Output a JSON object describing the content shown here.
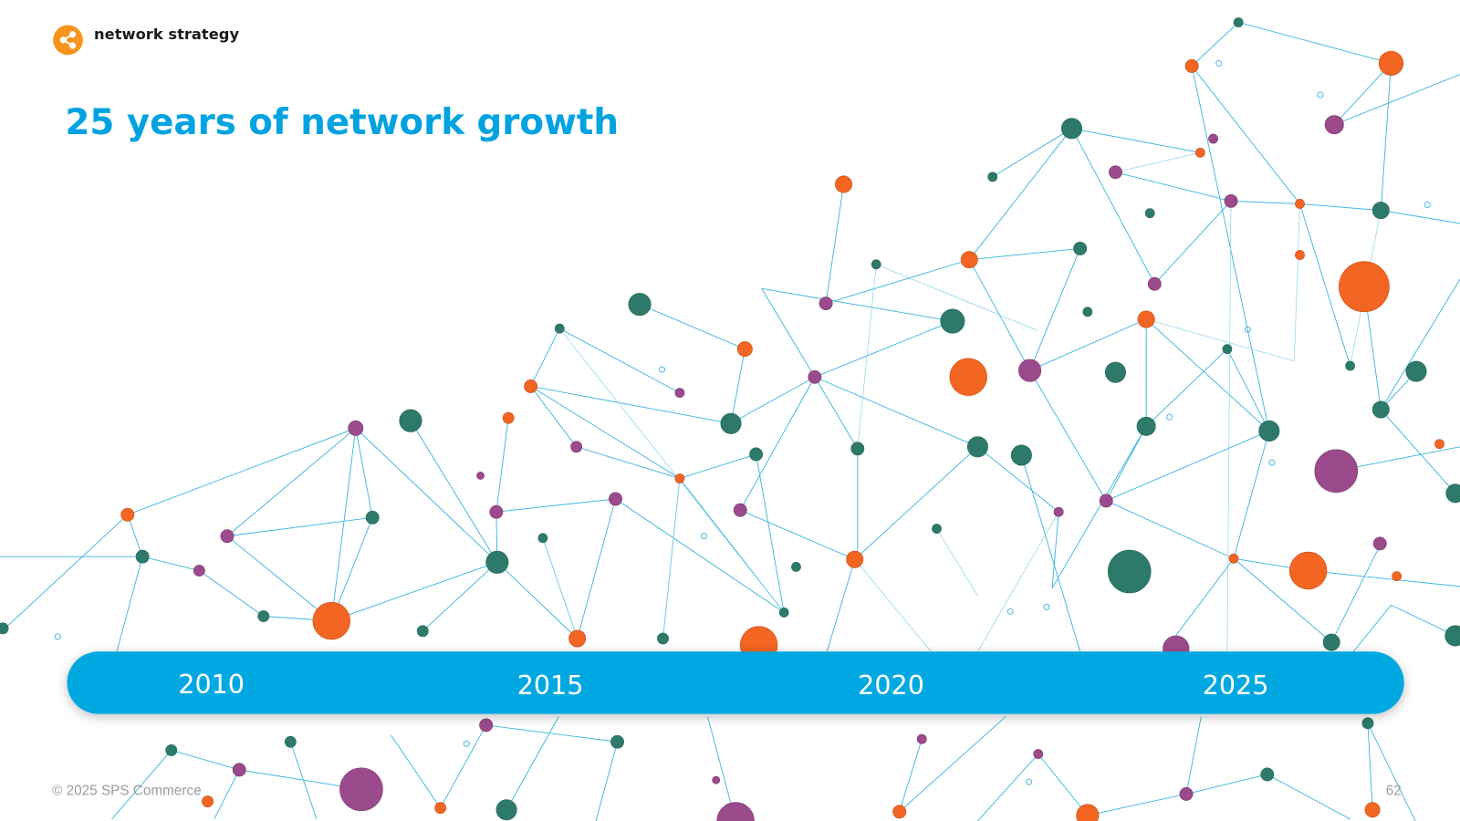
{
  "header": {
    "label": "network strategy"
  },
  "title": "25 years of network growth",
  "timeline": {
    "years": [
      "2010",
      "2015",
      "2020",
      "2025"
    ]
  },
  "footer": {
    "copyright": "© 2025 SPS Commerce",
    "page_number": "62"
  }
}
